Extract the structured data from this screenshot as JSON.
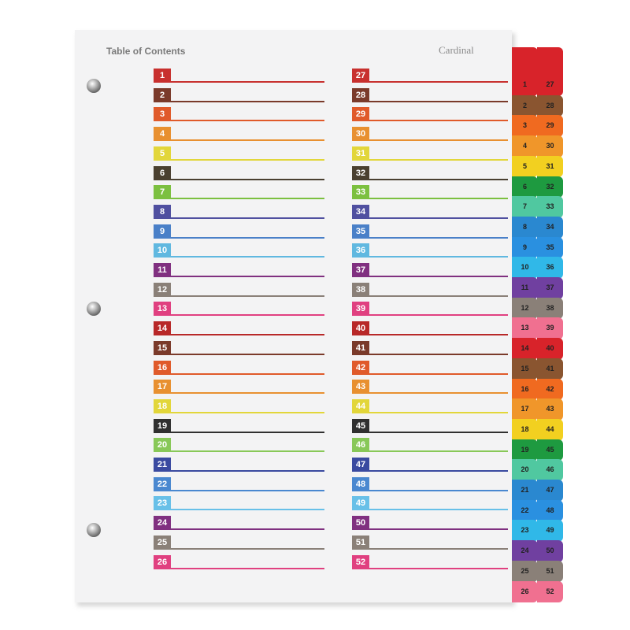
{
  "header": {
    "title": "Table of Contents",
    "brand": "Cardinal"
  },
  "colors": [
    "#c8302e",
    "#7a3a2a",
    "#e05a2a",
    "#e89030",
    "#e2d63a",
    "#4a4030",
    "#7cc040",
    "#5050a0",
    "#4a80c8",
    "#60b8e0",
    "#803080",
    "#8a8078",
    "#e04080",
    "#b82828",
    "#7a3a2a",
    "#e05a2a",
    "#e89030",
    "#e2d63a",
    "#303030",
    "#88c858",
    "#3a4aa0",
    "#4a88d0",
    "#68c0e8",
    "#803080",
    "#8a8078",
    "#e04080"
  ],
  "tab_colors": [
    "#d8232a",
    "#8a5530",
    "#f06a20",
    "#f0962a",
    "#f2d020",
    "#1e9a40",
    "#50c8a0",
    "#2a88d0",
    "#2a90e0",
    "#30b8e8",
    "#7040a0",
    "#8a8078",
    "#f07090",
    "#d8232a",
    "#8a5530",
    "#f06a20",
    "#f0962a",
    "#f2d020",
    "#1e9a40",
    "#50c8a0",
    "#2a88d0",
    "#2a90e0",
    "#30b8e8",
    "#7040a0",
    "#8a8078",
    "#f07090"
  ],
  "left_numbers": [
    "1",
    "2",
    "3",
    "4",
    "5",
    "6",
    "7",
    "8",
    "9",
    "10",
    "11",
    "12",
    "13",
    "14",
    "15",
    "16",
    "17",
    "18",
    "19",
    "20",
    "21",
    "22",
    "23",
    "24",
    "25",
    "26"
  ],
  "right_numbers": [
    "27",
    "28",
    "29",
    "30",
    "31",
    "32",
    "33",
    "34",
    "35",
    "36",
    "37",
    "38",
    "39",
    "40",
    "41",
    "42",
    "43",
    "44",
    "45",
    "46",
    "47",
    "48",
    "49",
    "50",
    "51",
    "52"
  ]
}
